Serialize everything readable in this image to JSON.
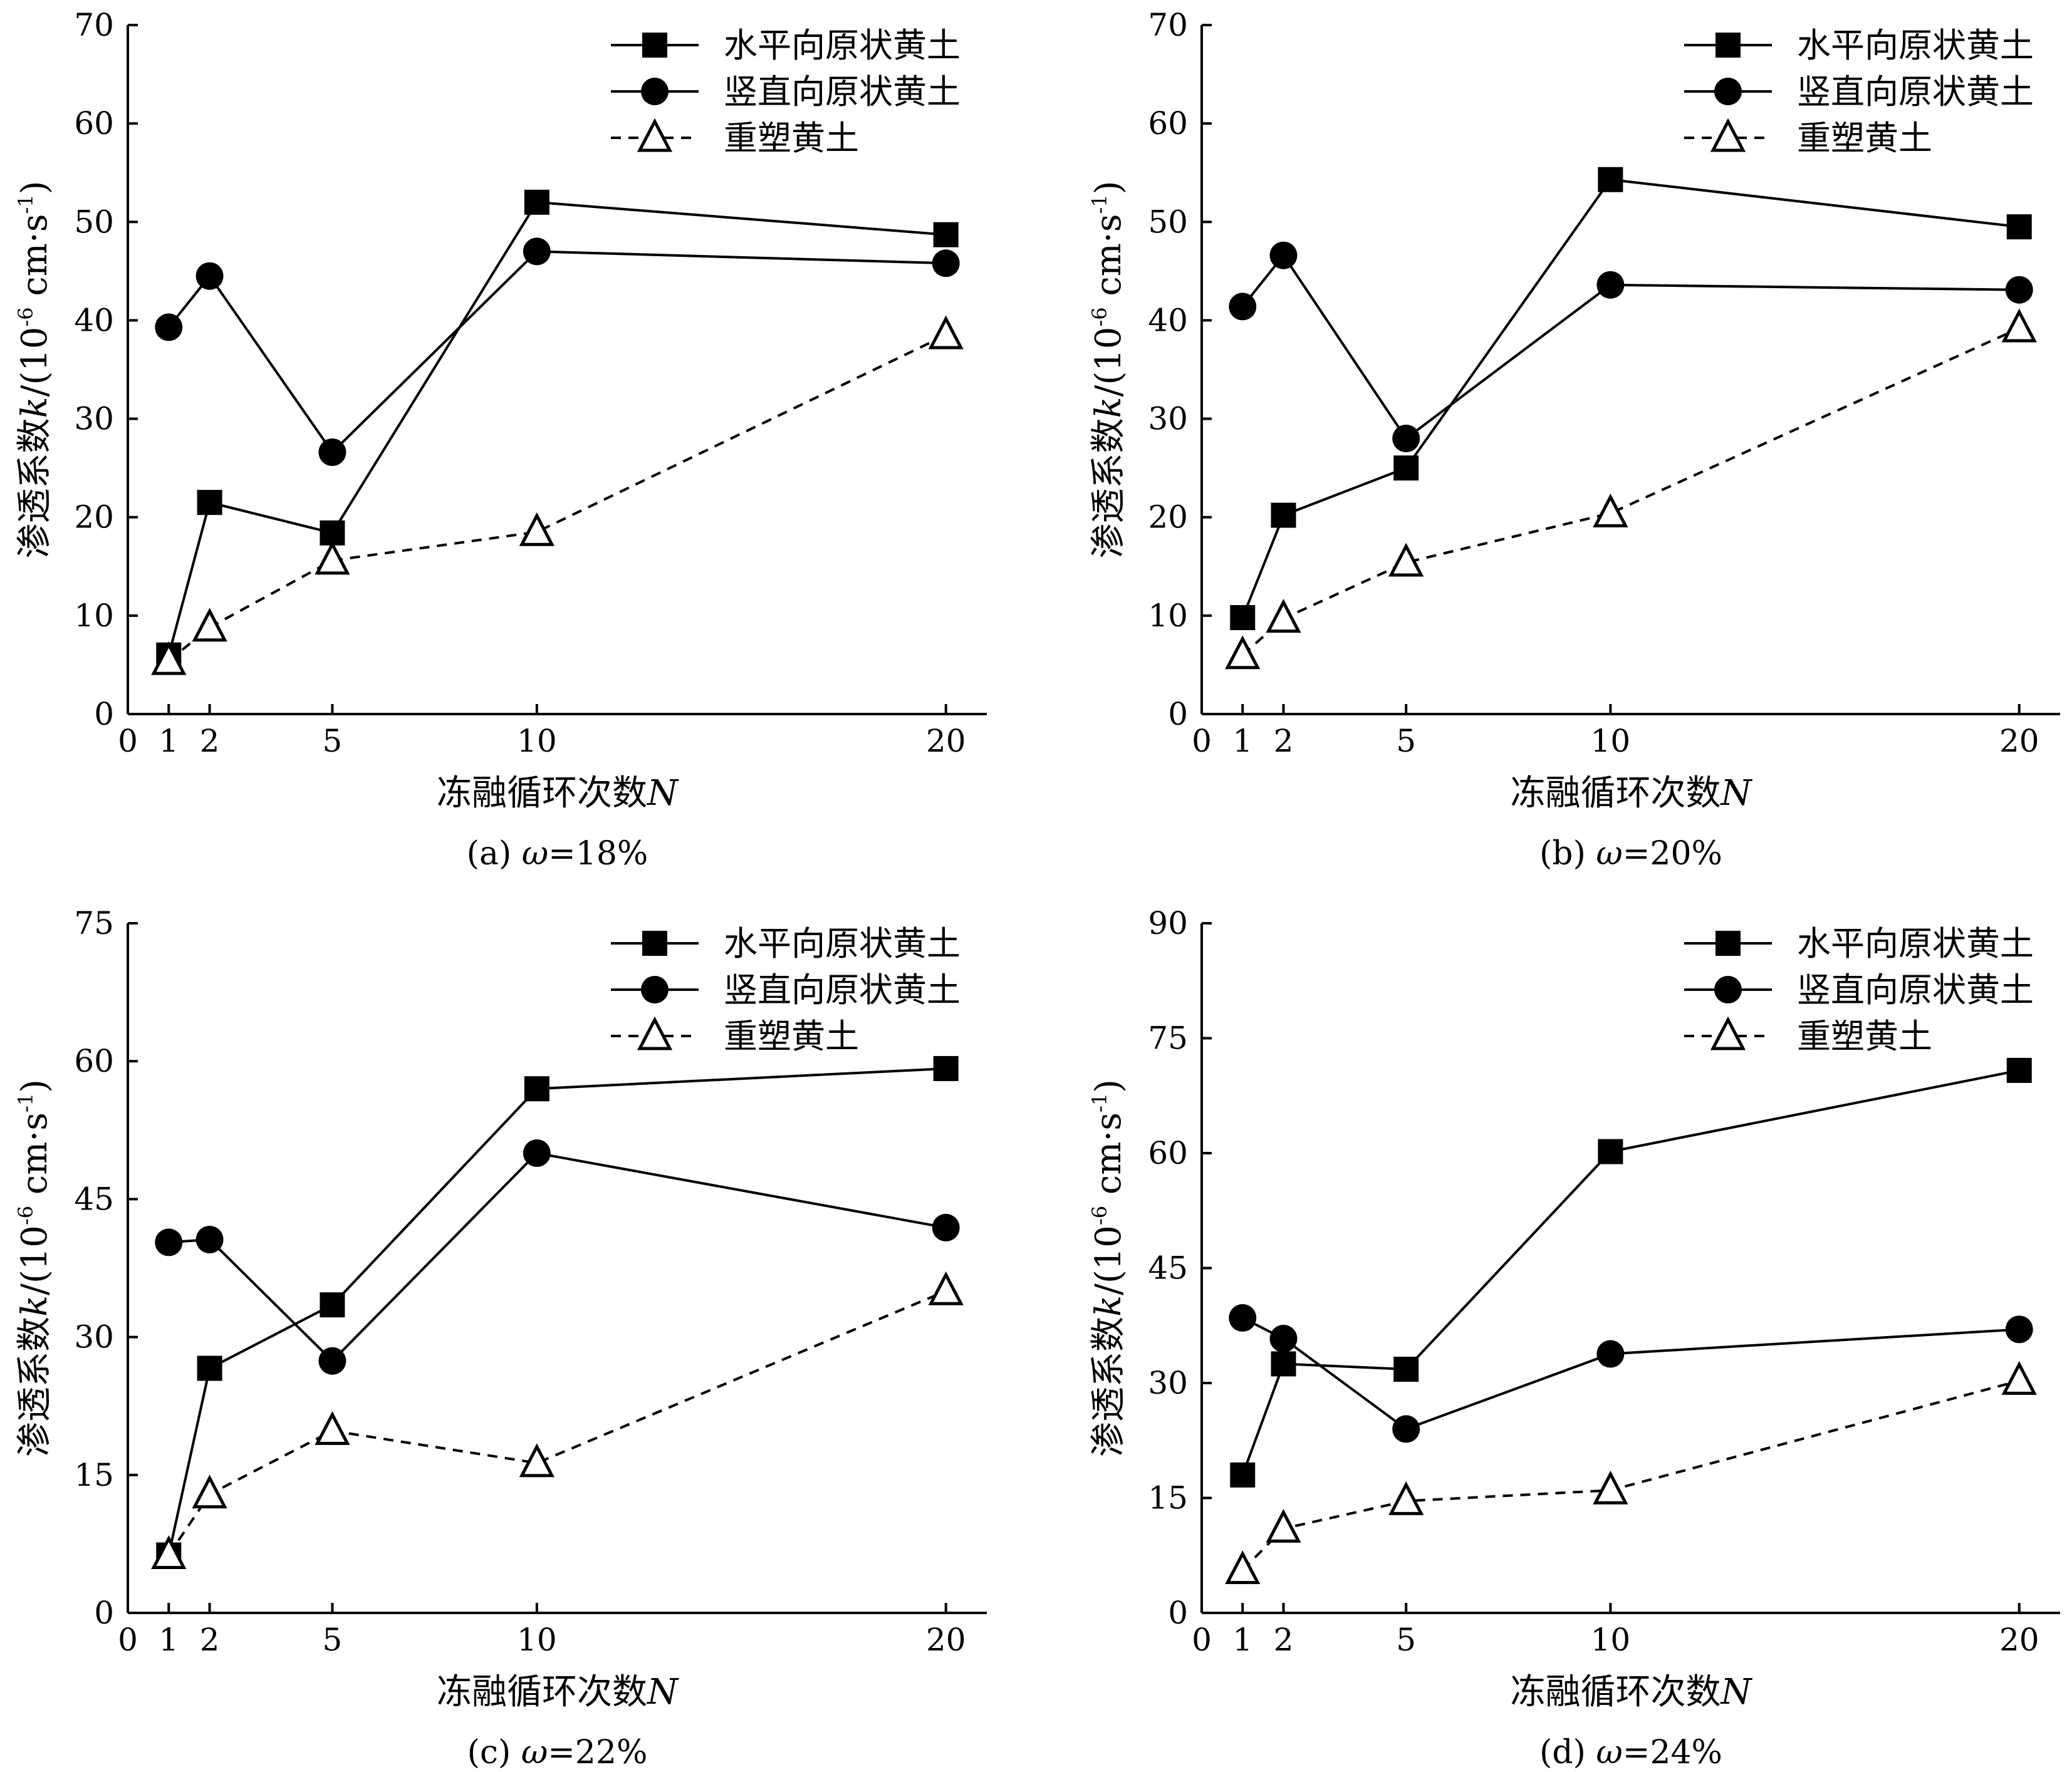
{
  "chart_data": [
    {
      "type": "line",
      "caption_prefix": "(a) ",
      "caption_var": "ω",
      "caption_suffix": "=18%",
      "xlabel_main": "冻融循环次数",
      "xlabel_var": "N",
      "ylabel_main": "渗透系数",
      "ylabel_var": "k",
      "ylabel_unit_a": "/(10",
      "ylabel_unit_exp": "-6",
      "ylabel_unit_b": " cm·s",
      "ylabel_unit_exp2": "-1",
      "ylabel_unit_c": ")",
      "x": [
        1,
        2,
        5,
        10,
        20
      ],
      "xlim": [
        0,
        21
      ],
      "xticks": [
        0,
        1,
        2,
        5,
        10,
        20
      ],
      "ylim": [
        0,
        70
      ],
      "yticks": [
        0,
        10,
        20,
        30,
        40,
        50,
        60,
        70
      ],
      "legend_position": "top-right",
      "series": [
        {
          "name": "水平向原状黄土",
          "marker": "square",
          "line": "solid",
          "values": [
            6,
            21.5,
            18.4,
            52,
            48.7
          ]
        },
        {
          "name": "竖直向原状黄土",
          "marker": "circle",
          "line": "solid",
          "values": [
            39.3,
            44.5,
            26.6,
            47,
            45.8
          ]
        },
        {
          "name": "重塑黄土",
          "marker": "triangle",
          "line": "dashed",
          "values": [
            5.4,
            8.8,
            15.6,
            18.5,
            38.5
          ]
        }
      ]
    },
    {
      "type": "line",
      "caption_prefix": "(b) ",
      "caption_var": "ω",
      "caption_suffix": "=20%",
      "xlabel_main": "冻融循环次数",
      "xlabel_var": "N",
      "ylabel_main": "渗透系数",
      "ylabel_var": "k",
      "ylabel_unit_a": "/(10",
      "ylabel_unit_exp": "-6",
      "ylabel_unit_b": " cm·s",
      "ylabel_unit_exp2": "-1",
      "ylabel_unit_c": ")",
      "x": [
        1,
        2,
        5,
        10,
        20
      ],
      "xlim": [
        0,
        21
      ],
      "xticks": [
        0,
        1,
        2,
        5,
        10,
        20
      ],
      "ylim": [
        0,
        70
      ],
      "yticks": [
        0,
        10,
        20,
        30,
        40,
        50,
        60,
        70
      ],
      "legend_position": "top-right",
      "series": [
        {
          "name": "水平向原状黄土",
          "marker": "square",
          "line": "solid",
          "values": [
            9.8,
            20.2,
            25,
            54.3,
            49.5
          ]
        },
        {
          "name": "竖直向原状黄土",
          "marker": "circle",
          "line": "solid",
          "values": [
            41.4,
            46.6,
            28,
            43.6,
            43.1
          ]
        },
        {
          "name": "重塑黄土",
          "marker": "triangle",
          "line": "dashed",
          "values": [
            6,
            9.7,
            15.4,
            20.4,
            39.2
          ]
        }
      ]
    },
    {
      "type": "line",
      "caption_prefix": "(c) ",
      "caption_var": "ω",
      "caption_suffix": "=22%",
      "xlabel_main": "冻融循环次数",
      "xlabel_var": "N",
      "ylabel_main": "渗透系数",
      "ylabel_var": "k",
      "ylabel_unit_a": "/(10",
      "ylabel_unit_exp": "-6",
      "ylabel_unit_b": " cm·s",
      "ylabel_unit_exp2": "-1",
      "ylabel_unit_c": ")",
      "x": [
        1,
        2,
        5,
        10,
        20
      ],
      "xlim": [
        0,
        21
      ],
      "xticks": [
        0,
        1,
        2,
        5,
        10,
        20
      ],
      "ylim": [
        0,
        75
      ],
      "yticks": [
        0,
        15,
        30,
        45,
        60,
        75
      ],
      "legend_position": "top-right",
      "series": [
        {
          "name": "水平向原状黄土",
          "marker": "square",
          "line": "solid",
          "values": [
            6.3,
            26.6,
            33.5,
            57,
            59.2
          ]
        },
        {
          "name": "竖直向原状黄土",
          "marker": "circle",
          "line": "solid",
          "values": [
            40.3,
            40.6,
            27.4,
            50,
            41.9
          ]
        },
        {
          "name": "重塑黄土",
          "marker": "triangle",
          "line": "dashed",
          "values": [
            6.3,
            12.9,
            19.8,
            16.3,
            35
          ]
        }
      ]
    },
    {
      "type": "line",
      "caption_prefix": "(d) ",
      "caption_var": "ω",
      "caption_suffix": "=24%",
      "xlabel_main": "冻融循环次数",
      "xlabel_var": "N",
      "ylabel_main": "渗透系数",
      "ylabel_var": "k",
      "ylabel_unit_a": "/(10",
      "ylabel_unit_exp": "-6",
      "ylabel_unit_b": " cm·s",
      "ylabel_unit_exp2": "-1",
      "ylabel_unit_c": ")",
      "x": [
        1,
        2,
        5,
        10,
        20
      ],
      "xlim": [
        0,
        21
      ],
      "xticks": [
        0,
        1,
        2,
        5,
        10,
        20
      ],
      "ylim": [
        0,
        90
      ],
      "yticks": [
        0,
        15,
        30,
        45,
        60,
        75,
        90
      ],
      "legend_position": "top-right",
      "series": [
        {
          "name": "水平向原状黄土",
          "marker": "square",
          "line": "solid",
          "values": [
            18,
            32.5,
            31.8,
            60.2,
            70.8
          ]
        },
        {
          "name": "竖直向原状黄土",
          "marker": "circle",
          "line": "solid",
          "values": [
            38.5,
            35.8,
            24,
            33.8,
            37
          ]
        },
        {
          "name": "重塑黄土",
          "marker": "triangle",
          "line": "dashed",
          "values": [
            5.6,
            11,
            14.6,
            16,
            30.3
          ]
        }
      ]
    }
  ]
}
